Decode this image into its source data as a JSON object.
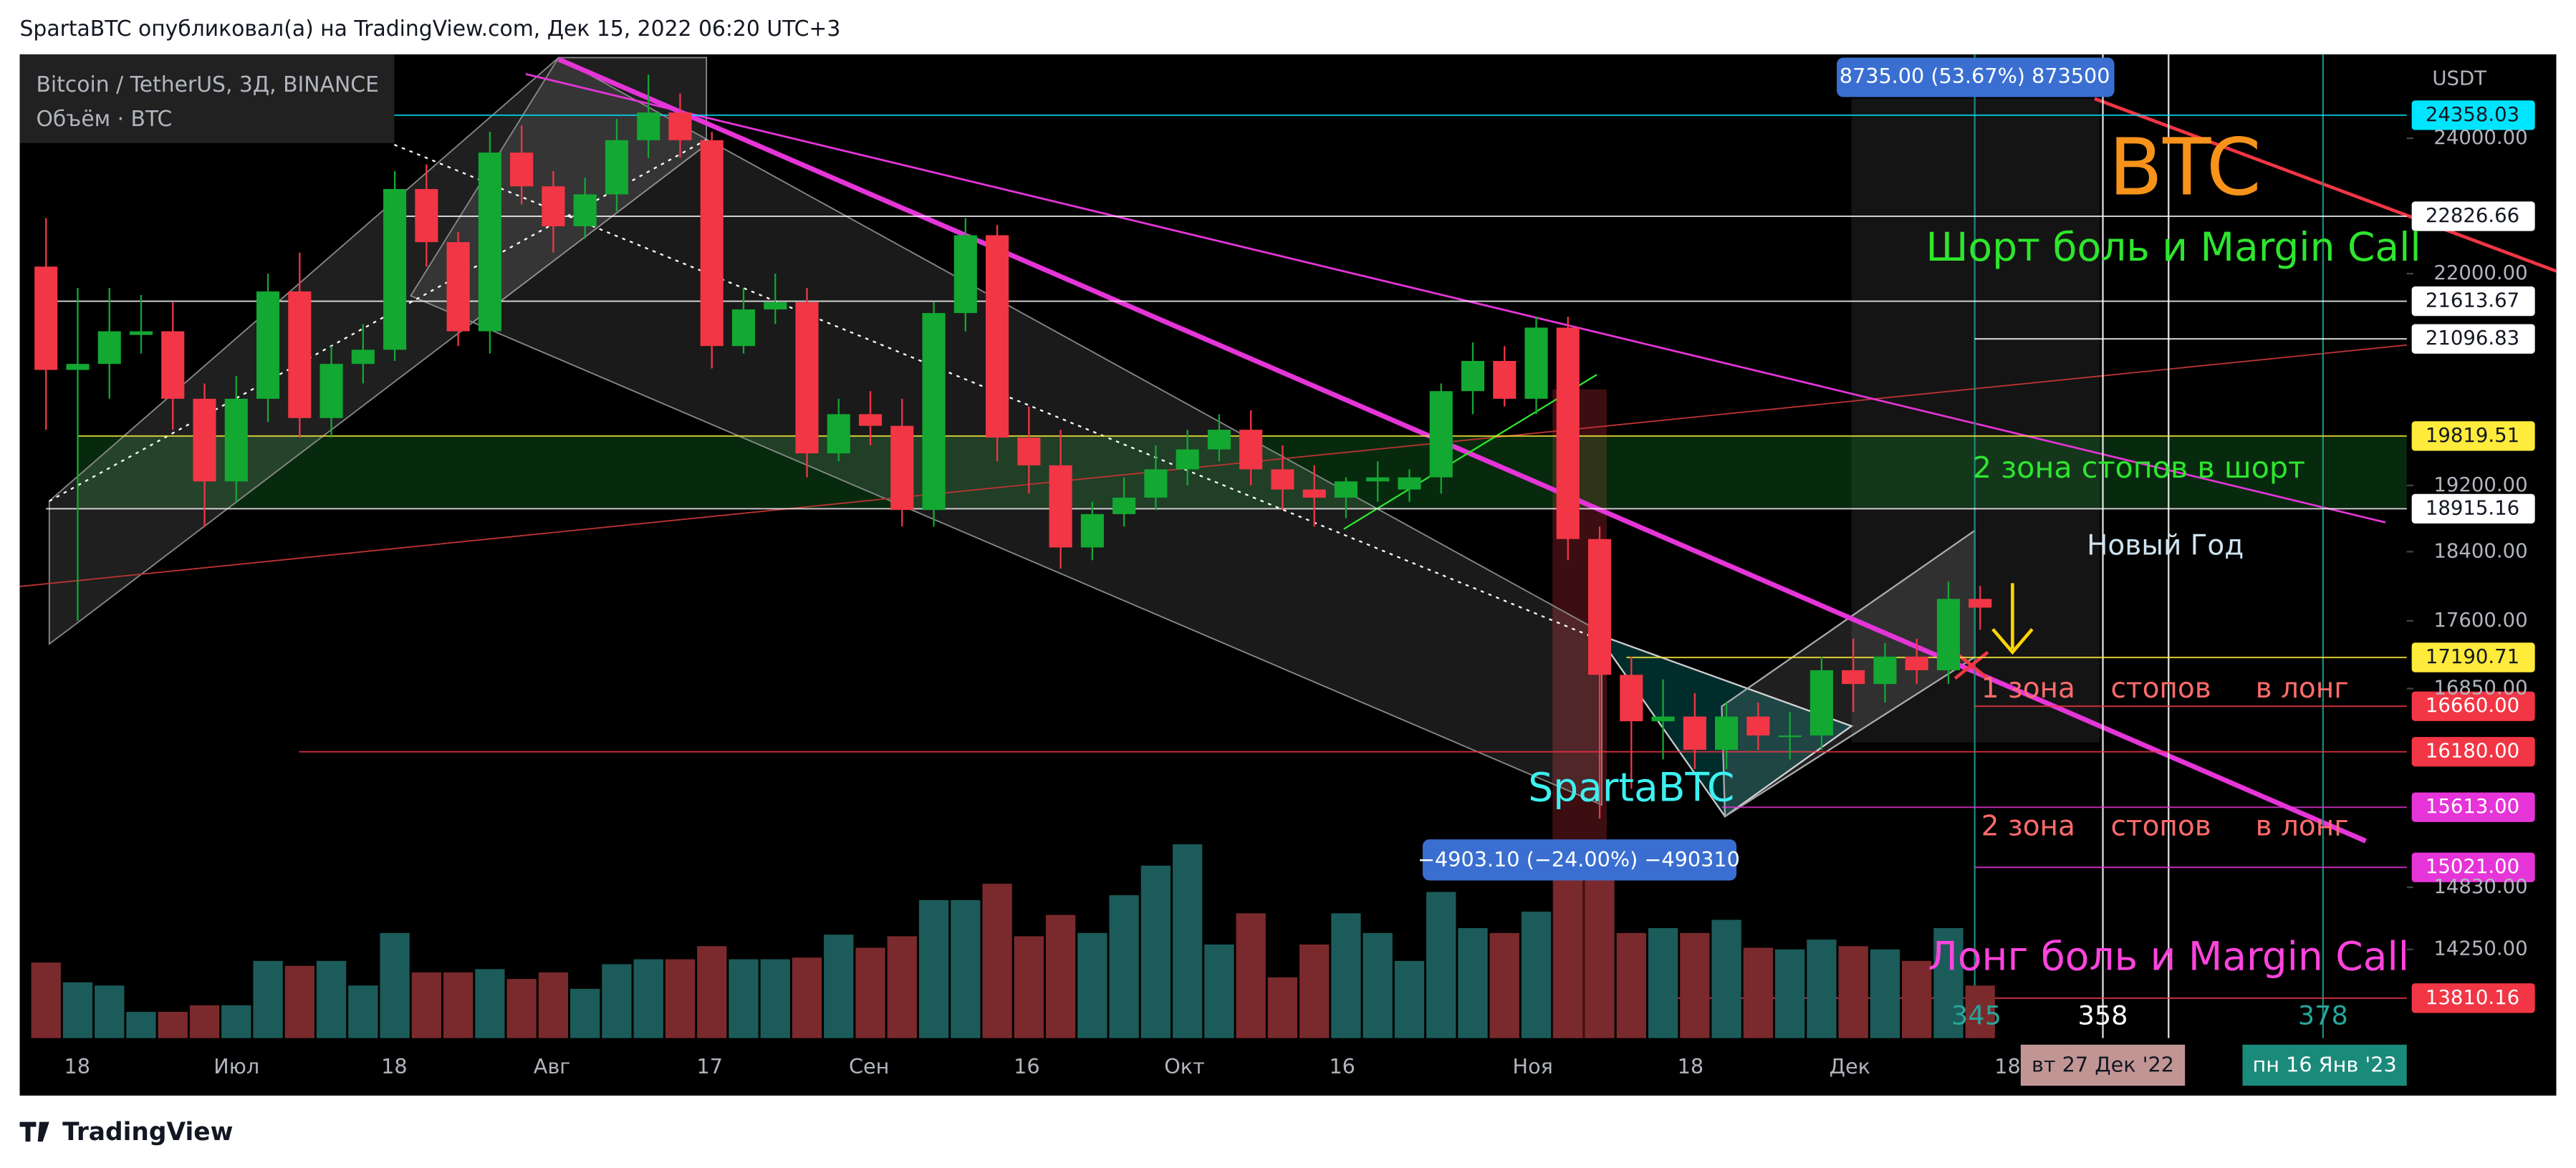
{
  "header": {
    "text": "SpartaBTC опубликовал(а) на TradingView.com, Дек 15, 2022 06:20 UTC+3"
  },
  "footer": {
    "brand": "TradingView"
  },
  "chart_data": {
    "type": "candlestick",
    "symbol": "Bitcoin / TetherUS, 3Д, BINANCE",
    "volume_label": "Объём · BTC",
    "currency": "USDT",
    "log_scale": true,
    "ylim": [
      13460,
      25330
    ],
    "yticks": [
      {
        "value": 24000,
        "label": "24000.00"
      },
      {
        "value": 22000,
        "label": "22000.00"
      },
      {
        "value": 19200,
        "label": "19200.00"
      },
      {
        "value": 18400,
        "label": "18400.00"
      },
      {
        "value": 17600,
        "label": "17600.00"
      },
      {
        "value": 16850,
        "label": "16850.00"
      },
      {
        "value": 14830,
        "label": "14830.00"
      },
      {
        "value": 14250,
        "label": "14250.00"
      }
    ],
    "x_labels": [
      "18",
      "Июл",
      "18",
      "Авг",
      "17",
      "Сен",
      "16",
      "Окт",
      "16",
      "Ноя",
      "18",
      "Дек",
      "18"
    ],
    "up_color": "#12a832",
    "down_color": "#f23645",
    "volume_up_color": "#1b5c5a",
    "volume_down_color": "#7a2a2c",
    "open": [
      22100,
      20680,
      20760,
      21150,
      21200,
      20300,
      19250,
      20300,
      21750,
      20050,
      20760,
      20950,
      23230,
      22450,
      21200,
      23780,
      23270,
      22680,
      23150,
      23970,
      24400,
      23970,
      21000,
      21500,
      21600,
      19600,
      20100,
      19950,
      18900,
      21450,
      22550,
      19800,
      19450,
      18450,
      18850,
      19050,
      19400,
      19650,
      19900,
      19400,
      19150,
      19050,
      19250,
      19150,
      19300,
      20400,
      20800,
      20300,
      21250,
      18550,
      17000,
      16500,
      16550,
      16200,
      16550,
      16350,
      16350,
      17050,
      16900,
      17200,
      17050,
      17850
    ],
    "high": [
      22800,
      21800,
      21800,
      21700,
      21600,
      20500,
      20600,
      22000,
      22300,
      21000,
      21300,
      23500,
      23600,
      22600,
      24100,
      24200,
      23500,
      23400,
      24300,
      25000,
      24700,
      24100,
      21800,
      22000,
      21800,
      20300,
      20400,
      20300,
      21600,
      22800,
      22700,
      20200,
      19900,
      19000,
      19300,
      19700,
      19900,
      20100,
      20150,
      19700,
      19450,
      19300,
      19500,
      19400,
      20500,
      21050,
      21000,
      21400,
      21400,
      18700,
      17200,
      16950,
      16800,
      16700,
      16700,
      16600,
      17200,
      17400,
      17350,
      17400,
      18050,
      18000
    ],
    "low": [
      19900,
      17600,
      20300,
      20900,
      19900,
      18700,
      19000,
      20000,
      19800,
      19800,
      20500,
      20800,
      22100,
      21000,
      20900,
      23000,
      22300,
      22500,
      22900,
      23700,
      23700,
      20700,
      20900,
      21300,
      19300,
      19500,
      19700,
      18700,
      18700,
      21200,
      19500,
      19100,
      18200,
      18300,
      18700,
      18900,
      19200,
      19500,
      19200,
      18900,
      18700,
      18800,
      19000,
      19000,
      19100,
      20100,
      20200,
      20100,
      18300,
      15500,
      15800,
      16100,
      16000,
      16000,
      16200,
      16100,
      16200,
      16600,
      16700,
      16900,
      16900,
      17500
    ],
    "close": [
      20680,
      20760,
      21200,
      21200,
      20300,
      19250,
      20300,
      21750,
      20050,
      20760,
      20950,
      23230,
      22450,
      21200,
      23780,
      23270,
      22680,
      23150,
      23970,
      24400,
      23970,
      21000,
      21500,
      21600,
      19600,
      20100,
      19950,
      18900,
      21450,
      22550,
      19800,
      19450,
      18450,
      18850,
      19050,
      19400,
      19650,
      19900,
      19400,
      19150,
      19050,
      19250,
      19300,
      19300,
      20400,
      20800,
      20300,
      21250,
      18550,
      17000,
      16500,
      16550,
      16200,
      16550,
      16350,
      16350,
      17050,
      16900,
      17200,
      17050,
      17850,
      17750
    ],
    "volume": [
      46000,
      34000,
      32000,
      16000,
      16000,
      20000,
      20000,
      47000,
      44000,
      47000,
      32000,
      64000,
      40000,
      40000,
      42000,
      36000,
      40000,
      30000,
      45000,
      48000,
      48000,
      56000,
      48000,
      48000,
      49000,
      63000,
      55000,
      62000,
      84000,
      84000,
      94000,
      62000,
      75000,
      64000,
      87000,
      105000,
      118000,
      57000,
      76000,
      37000,
      57000,
      76000,
      64000,
      47000,
      89000,
      67000,
      64000,
      77000,
      97000,
      110000,
      64000,
      67000,
      64000,
      72000,
      55000,
      54000,
      60000,
      56000,
      54000,
      47000,
      67000,
      32000
    ],
    "levels": [
      {
        "value": 24358.03,
        "label": "24358.03",
        "color": "#00e5ff"
      },
      {
        "value": 22826.66,
        "label": "22826.66",
        "color": "#ffffff"
      },
      {
        "value": 21613.67,
        "label": "21613.67",
        "color": "#ffffff"
      },
      {
        "value": 21096.83,
        "label": "21096.83",
        "color": "#ffffff"
      },
      {
        "value": 19819.51,
        "label": "19819.51",
        "color": "#ffeb3b"
      },
      {
        "value": 18915.16,
        "label": "18915.16",
        "color": "#ffffff"
      },
      {
        "value": 17190.71,
        "label": "17190.71",
        "color": "#ffeb3b"
      },
      {
        "value": 16660,
        "label": "16660.00",
        "color": "#f23645"
      },
      {
        "value": 16180,
        "label": "16180.00",
        "color": "#f23645"
      },
      {
        "value": 15613,
        "label": "15613.00",
        "color": "#e535d8"
      },
      {
        "value": 15021,
        "label": "15021.00",
        "color": "#e535d8"
      },
      {
        "value": 13810.16,
        "label": "13810.16",
        "color": "#f23645"
      }
    ],
    "annotations": {
      "btc": "BTC",
      "short_pain": "Шорт боль и Margin Call",
      "short_stops": "2 зона стопов в шорт",
      "new_year": "Новый Год",
      "long_stops_1": "1 зона    стопов     в лонг",
      "long_stops_2": "2 зона    стопов     в лонг",
      "long_pain": "Лонг боль и Margin Call",
      "author": "SpartaBTC",
      "measure_up": "8735.00 (53.67%) 873500",
      "measure_down": "−4903.10 (−24.00%) −490310",
      "bar_count_1": "345",
      "bar_count_2": "358",
      "bar_count_3": "378",
      "date_1": "вт 27 Дек '22",
      "date_2": "пн 16 Янв '23"
    }
  }
}
